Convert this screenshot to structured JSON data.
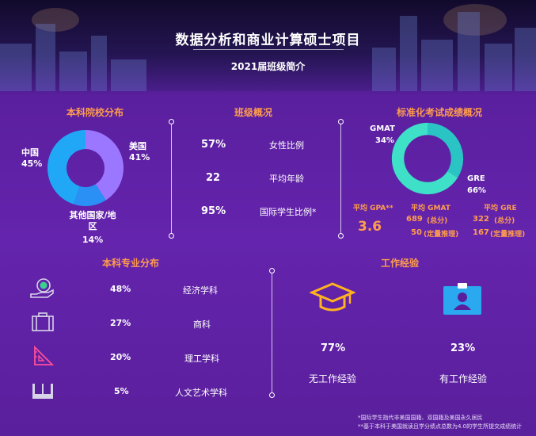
{
  "header": {
    "title": "数据分析和商业计算硕士项目",
    "subtitle": "2021届班级简介"
  },
  "undergrad_school": {
    "title": "本科院校分布",
    "slices": [
      {
        "label": "美国",
        "value": "41%",
        "pct": 41,
        "color": "#9b77ff"
      },
      {
        "label": "其他国家/地区",
        "value": "14%",
        "pct": 14,
        "color": "#2b90f5"
      },
      {
        "label": "中国",
        "value": "45%",
        "pct": 45,
        "color": "#20a8f7"
      }
    ]
  },
  "class_overview": {
    "title": "班级概况",
    "rows": [
      {
        "value": "57%",
        "label": "女性比例"
      },
      {
        "value": "22",
        "label": "平均年龄"
      },
      {
        "value": "95%",
        "label": "国际学生比例*"
      }
    ]
  },
  "test_scores": {
    "title": "标准化考试成绩概况",
    "slices": [
      {
        "label": "GMAT",
        "value": "34%",
        "pct": 34,
        "color": "#2bc4c4"
      },
      {
        "label": "GRE",
        "value": "66%",
        "pct": 66,
        "color": "#3ee0c8"
      }
    ],
    "gpa_label": "平均 GPA**",
    "gpa_value": "3.6",
    "gmat_label": "平均 GMAT",
    "gmat_total": "689",
    "gmat_total_note": "(总分)",
    "gmat_quant": "50",
    "gmat_quant_note": "(定量推理)",
    "gre_label": "平均 GRE",
    "gre_total": "322",
    "gre_total_note": "(总分)",
    "gre_quant": "167",
    "gre_quant_note": "(定量推理)"
  },
  "undergrad_major": {
    "title": "本科专业分布",
    "rows": [
      {
        "icon": "money-hand-icon",
        "value": "48%",
        "label": "经济学科"
      },
      {
        "icon": "briefcase-icon",
        "value": "27%",
        "label": "商科"
      },
      {
        "icon": "ruler-triangle-icon",
        "value": "20%",
        "label": "理工学科"
      },
      {
        "icon": "book-icon",
        "value": "5%",
        "label": "人文艺术学科"
      }
    ]
  },
  "work_experience": {
    "title": "工作经验",
    "items": [
      {
        "icon": "graduation-cap-icon",
        "value": "77%",
        "label": "无工作经验"
      },
      {
        "icon": "id-badge-icon",
        "value": "23%",
        "label": "有工作经验"
      }
    ]
  },
  "footnotes": [
    "*国际学生指代非美国国籍、双国籍及美国永久居民",
    "**基于本科于美国就读且学分绩点总数为4.0的学生所提交成绩统计"
  ],
  "colors": {
    "accent": "#ff9d4d",
    "background": "#6424ad"
  }
}
